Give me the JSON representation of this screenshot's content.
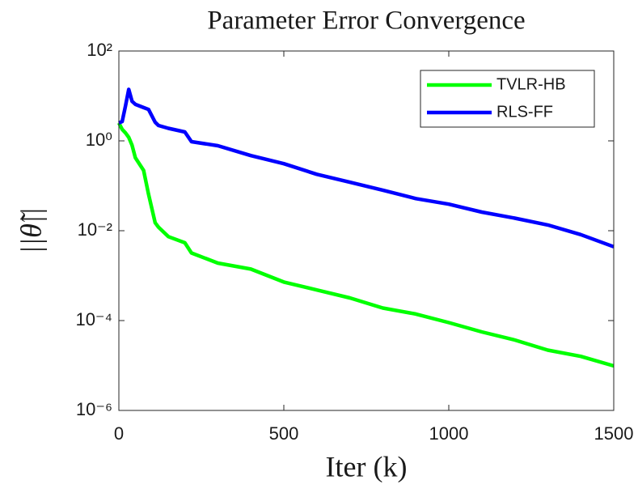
{
  "chart_data": {
    "type": "line",
    "title": "Parameter Error Convergence",
    "xlabel": "Iter (k)",
    "ylabel": "||θ̃||",
    "x": [
      0,
      10,
      20,
      30,
      40,
      50,
      75,
      90,
      110,
      120,
      150,
      200,
      220,
      300,
      400,
      500,
      600,
      700,
      800,
      900,
      1000,
      1100,
      1200,
      1300,
      1400,
      1500
    ],
    "series": [
      {
        "name": "TVLR-HB",
        "color": "#00ff00",
        "values": [
          2.5,
          1.8,
          1.5,
          1.2,
          0.8,
          0.42,
          0.22,
          0.065,
          0.015,
          0.012,
          0.0074,
          0.0054,
          0.0032,
          0.0019,
          0.0014,
          0.00072,
          0.00048,
          0.00032,
          0.00019,
          0.00014,
          9e-05,
          5.6e-05,
          3.7e-05,
          2.2e-05,
          1.6e-05,
          9.8e-06
        ]
      },
      {
        "name": "RLS-FF",
        "color": "#0000ff",
        "values": [
          2.5,
          2.7,
          6,
          14,
          7.6,
          6.5,
          5.5,
          5,
          2.6,
          2.2,
          1.9,
          1.58,
          0.96,
          0.78,
          0.47,
          0.31,
          0.18,
          0.12,
          0.08,
          0.052,
          0.039,
          0.026,
          0.019,
          0.0134,
          0.0082,
          0.0044
        ]
      }
    ],
    "xlim": [
      0,
      1500
    ],
    "xticks": [
      0,
      500,
      1000,
      1500
    ],
    "ylim": [
      1e-06,
      100
    ],
    "ylog": true,
    "yticks": [
      {
        "value": 1e-06,
        "label": "10⁻⁶"
      },
      {
        "value": 0.0001,
        "label": "10⁻⁴"
      },
      {
        "value": 0.01,
        "label": "10⁻²"
      },
      {
        "value": 1,
        "label": "10⁰"
      },
      {
        "value": 100,
        "label": "10²"
      }
    ],
    "legend": "upper right"
  }
}
